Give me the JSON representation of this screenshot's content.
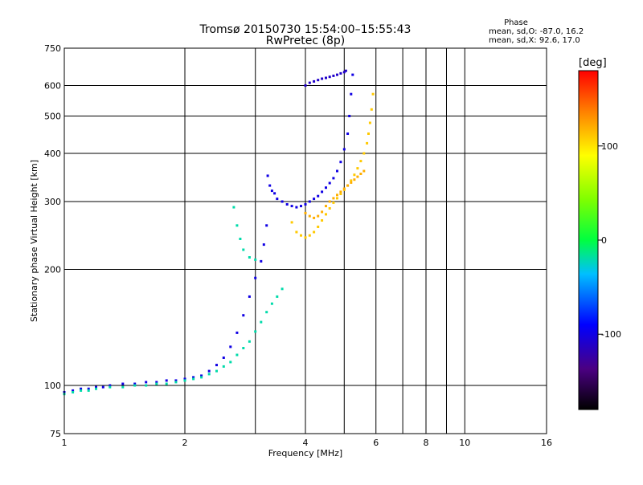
{
  "chart_data": {
    "type": "scatter",
    "title": "Tromsø 20150730 15:54:00–15:55:43",
    "subtitle": "RwPretec (8p)",
    "xlabel": "Frequency [MHz]",
    "ylabel": "Stationary phase Virtual Height [km]",
    "x_scale": "log",
    "y_scale": "log",
    "xlim": [
      1,
      16
    ],
    "ylim": [
      75,
      750
    ],
    "grid": true,
    "x_ticks": [
      1,
      2,
      4,
      6,
      8,
      10,
      16
    ],
    "x_tick_labels": [
      "1",
      "2",
      "4",
      "6",
      "8",
      "10",
      "16"
    ],
    "x_grid": [
      2,
      3,
      4,
      5,
      6,
      7,
      8,
      9,
      10
    ],
    "y_ticks": [
      75,
      100,
      200,
      300,
      400,
      500,
      600,
      750
    ],
    "y_tick_labels": [
      "75",
      "100",
      "200",
      "300",
      "400",
      "500",
      "600",
      "750"
    ],
    "y_grid": [
      100,
      200,
      300,
      400,
      500,
      600
    ],
    "stats": {
      "heading": "Phase",
      "o_line": "mean, sd,O: -87.0, 16.2",
      "x_line": "mean, sd,X:  92.6, 17.0"
    },
    "colorbar": {
      "label": "[deg]",
      "min": -180,
      "max": 180,
      "ticks": [
        100,
        0,
        -100
      ],
      "tick_labels": [
        "100",
        "0",
        "-100"
      ]
    },
    "series": [
      {
        "phase": -100,
        "x": [
          1.0,
          1.05,
          1.1,
          1.15,
          1.2,
          1.25,
          1.3,
          1.4,
          1.5,
          1.6,
          1.7,
          1.8,
          1.9,
          2.0,
          2.1,
          2.2,
          2.3,
          2.4,
          2.5,
          2.6,
          2.7,
          2.8,
          2.9,
          3.0,
          3.1,
          3.15,
          3.2
        ],
        "y": [
          96,
          97,
          98,
          98,
          99,
          99,
          100,
          101,
          101,
          102,
          102,
          103,
          103,
          104,
          105,
          106,
          109,
          113,
          118,
          126,
          137,
          152,
          170,
          190,
          210,
          232,
          260
        ]
      },
      {
        "phase": -100,
        "x": [
          3.22,
          3.26,
          3.3,
          3.35,
          3.4,
          3.5,
          3.6,
          3.7,
          3.8,
          3.9,
          4.0,
          4.1,
          4.2,
          4.3,
          4.4,
          4.5,
          4.6,
          4.7,
          4.8,
          4.9,
          5.0,
          5.1,
          5.15,
          5.2,
          5.25
        ],
        "y": [
          350,
          330,
          320,
          315,
          305,
          300,
          295,
          292,
          290,
          292,
          295,
          300,
          305,
          310,
          318,
          326,
          335,
          345,
          360,
          380,
          410,
          450,
          500,
          570,
          640
        ]
      },
      {
        "phase": -110,
        "x": [
          4.0,
          4.1,
          4.2,
          4.3,
          4.4,
          4.5,
          4.6,
          4.7,
          4.8,
          4.9,
          5.0,
          5.05
        ],
        "y": [
          600,
          610,
          615,
          620,
          625,
          628,
          632,
          636,
          640,
          645,
          650,
          655
        ]
      },
      {
        "phase": -20,
        "x": [
          1.0,
          1.05,
          1.1,
          1.15,
          1.2,
          1.3,
          1.4,
          1.5,
          1.6,
          1.7,
          1.8,
          1.9,
          2.0,
          2.1,
          2.2,
          2.3,
          2.4,
          2.5,
          2.6,
          2.7,
          2.8,
          2.9,
          3.0,
          3.1,
          3.2,
          3.3,
          3.4,
          3.5
        ],
        "y": [
          95,
          96,
          97,
          97,
          98,
          99,
          99,
          100,
          100,
          101,
          101,
          102,
          103,
          104,
          105,
          107,
          109,
          112,
          115,
          120,
          125,
          130,
          138,
          146,
          155,
          163,
          170,
          178
        ]
      },
      {
        "phase": -20,
        "x": [
          2.65,
          2.7,
          2.75,
          2.8,
          2.9,
          3.0
        ],
        "y": [
          290,
          260,
          240,
          225,
          215,
          212
        ]
      },
      {
        "phase": 110,
        "x": [
          3.7,
          3.8,
          3.9,
          4.0,
          4.1,
          4.2,
          4.3,
          4.4,
          4.5,
          4.6,
          4.7,
          4.8,
          4.9,
          5.0,
          5.1,
          5.2,
          5.3,
          5.4,
          5.5,
          5.6,
          5.7,
          5.75,
          5.8,
          5.85,
          5.9
        ],
        "y": [
          265,
          250,
          245,
          242,
          245,
          250,
          258,
          268,
          278,
          288,
          298,
          306,
          314,
          322,
          330,
          340,
          352,
          366,
          382,
          400,
          425,
          450,
          480,
          520,
          570
        ]
      },
      {
        "phase": 120,
        "x": [
          4.0,
          4.1,
          4.2,
          4.3,
          4.4,
          4.5,
          4.6,
          4.7,
          4.8,
          4.9,
          5.0,
          5.1,
          5.2,
          5.3,
          5.4,
          5.5,
          5.6
        ],
        "y": [
          280,
          275,
          272,
          275,
          282,
          292,
          300,
          306,
          312,
          318,
          324,
          330,
          336,
          342,
          348,
          354,
          360
        ]
      }
    ]
  }
}
